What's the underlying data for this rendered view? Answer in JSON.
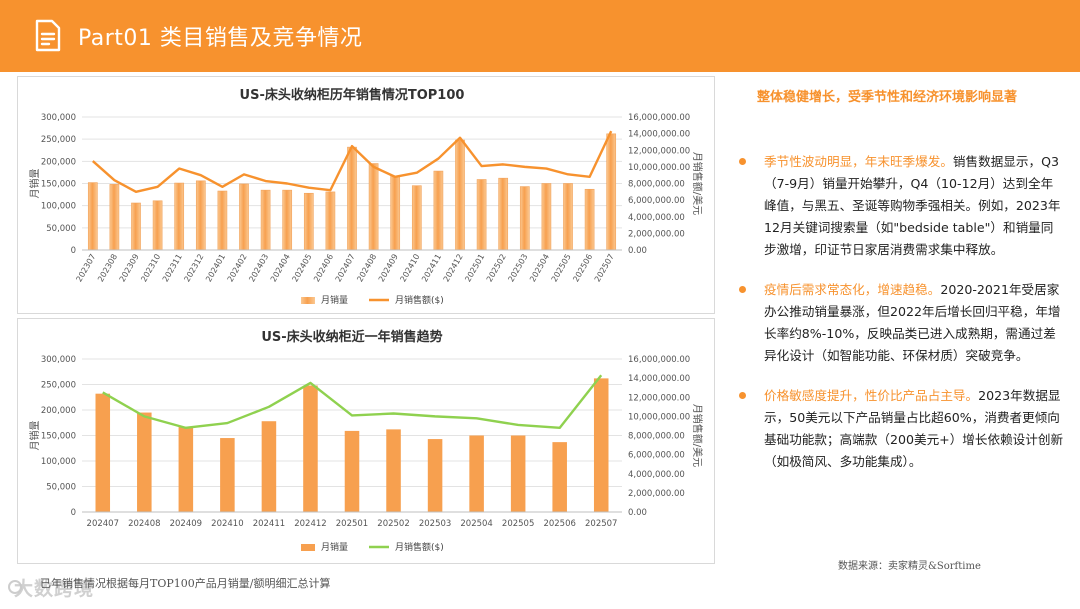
{
  "header": {
    "title": "Part01 类目销售及竞争情况",
    "icon": "document-icon"
  },
  "colors": {
    "accent": "#f7922e",
    "bar": "#f7a04f",
    "bar_light": "#fbc891",
    "line1": "#f7922e",
    "line2": "#8fd14f"
  },
  "chart_data": [
    {
      "type": "bar",
      "title": "US-床头收纳柜历年销售情况TOP100",
      "ylabel": "月销量",
      "y2label": "月销售额/美元",
      "ylim": [
        0,
        300000
      ],
      "y2lim": [
        0,
        16000000
      ],
      "yticks": [
        "0",
        "50,000",
        "100,000",
        "150,000",
        "200,000",
        "250,000",
        "300,000"
      ],
      "y2ticks": [
        "0.00",
        "2,000,000.00",
        "4,000,000.00",
        "6,000,000.00",
        "8,000,000.00",
        "10,000,000.00",
        "12,000,000.00",
        "14,000,000.00",
        "16,000,000.00"
      ],
      "categories": [
        "202307",
        "202308",
        "202309",
        "202310",
        "202311",
        "202312",
        "202401",
        "202402",
        "202403",
        "202404",
        "202405",
        "202406",
        "202407",
        "202408",
        "202409",
        "202410",
        "202411",
        "202412",
        "202501",
        "202502",
        "202503",
        "202504",
        "202505",
        "202506",
        "202507"
      ],
      "series": [
        {
          "name": "月销量",
          "kind": "bar",
          "axis": "left",
          "values": [
            152000,
            148000,
            106000,
            111000,
            151000,
            156000,
            133000,
            149000,
            135000,
            135000,
            128000,
            131000,
            232000,
            195000,
            167000,
            145000,
            178000,
            248000,
            159000,
            162000,
            143000,
            150000,
            150000,
            137000,
            262000
          ]
        },
        {
          "name": "月销售额($)",
          "kind": "line",
          "axis": "right",
          "values": [
            10700000,
            8400000,
            7000000,
            7600000,
            9800000,
            9000000,
            7600000,
            9100000,
            8300000,
            8000000,
            7500000,
            7200000,
            12500000,
            10000000,
            8800000,
            9300000,
            11000000,
            13500000,
            10100000,
            10300000,
            10000000,
            9800000,
            9100000,
            8800000,
            14300000
          ]
        }
      ],
      "legend_placement": "bottom"
    },
    {
      "type": "bar",
      "title": "US-床头收纳柜近一年销售趋势",
      "ylabel": "月销量",
      "y2label": "月销售额/美元",
      "ylim": [
        0,
        300000
      ],
      "y2lim": [
        0,
        16000000
      ],
      "yticks": [
        "0",
        "50,000",
        "100,000",
        "150,000",
        "200,000",
        "250,000",
        "300,000"
      ],
      "y2ticks": [
        "0.00",
        "2,000,000.00",
        "4,000,000.00",
        "6,000,000.00",
        "8,000,000.00",
        "10,000,000.00",
        "12,000,000.00",
        "14,000,000.00",
        "16,000,000.00"
      ],
      "categories": [
        "202407",
        "202408",
        "202409",
        "202410",
        "202411",
        "202412",
        "202501",
        "202502",
        "202503",
        "202504",
        "202505",
        "202506",
        "202507"
      ],
      "series": [
        {
          "name": "月销量",
          "kind": "bar",
          "axis": "left",
          "values": [
            232000,
            195000,
            167000,
            145000,
            178000,
            248000,
            159000,
            162000,
            143000,
            150000,
            150000,
            137000,
            262000
          ]
        },
        {
          "name": "月销售额($)",
          "kind": "line",
          "axis": "right",
          "values": [
            12500000,
            10000000,
            8800000,
            9300000,
            11000000,
            13500000,
            10100000,
            10300000,
            10000000,
            9800000,
            9100000,
            8800000,
            14300000
          ]
        }
      ],
      "legend_placement": "bottom"
    }
  ],
  "right": {
    "headline": "整体稳健增长，受季节性和经济环境影响显著",
    "bullets": [
      {
        "highlight": "季节性波动明显，年末旺季爆发。",
        "text": "销售数据显示，Q3（7-9月）销量开始攀升，Q4（10-12月）达到全年峰值，与黑五、圣诞等购物季强相关。例如，2023年12月关键词搜索量（如\"bedside table\"）和销量同步激增，印证节日家居消费需求集中释放。"
      },
      {
        "highlight": "疫情后需求常态化，增速趋稳。",
        "text": "2020-2021年受居家办公推动销量暴涨，但2022年后增长回归平稳，年增长率约8%-10%，反映品类已进入成熟期，需通过差异化设计（如智能功能、环保材质）突破竞争。"
      },
      {
        "highlight": "价格敏感度提升，性价比产品占主导。",
        "text": "2023年数据显示，50美元以下产品销量占比超60%，消费者更倾向基础功能款；高端款（200美元+）增长依赖设计创新（如极简风、多功能集成）。"
      }
    ]
  },
  "source": "数据来源：卖家精灵&Sorftime",
  "footnote": "已年销售情况根据每月TOP100产品月销量/额明细汇总计算",
  "watermark": "大数跨境"
}
